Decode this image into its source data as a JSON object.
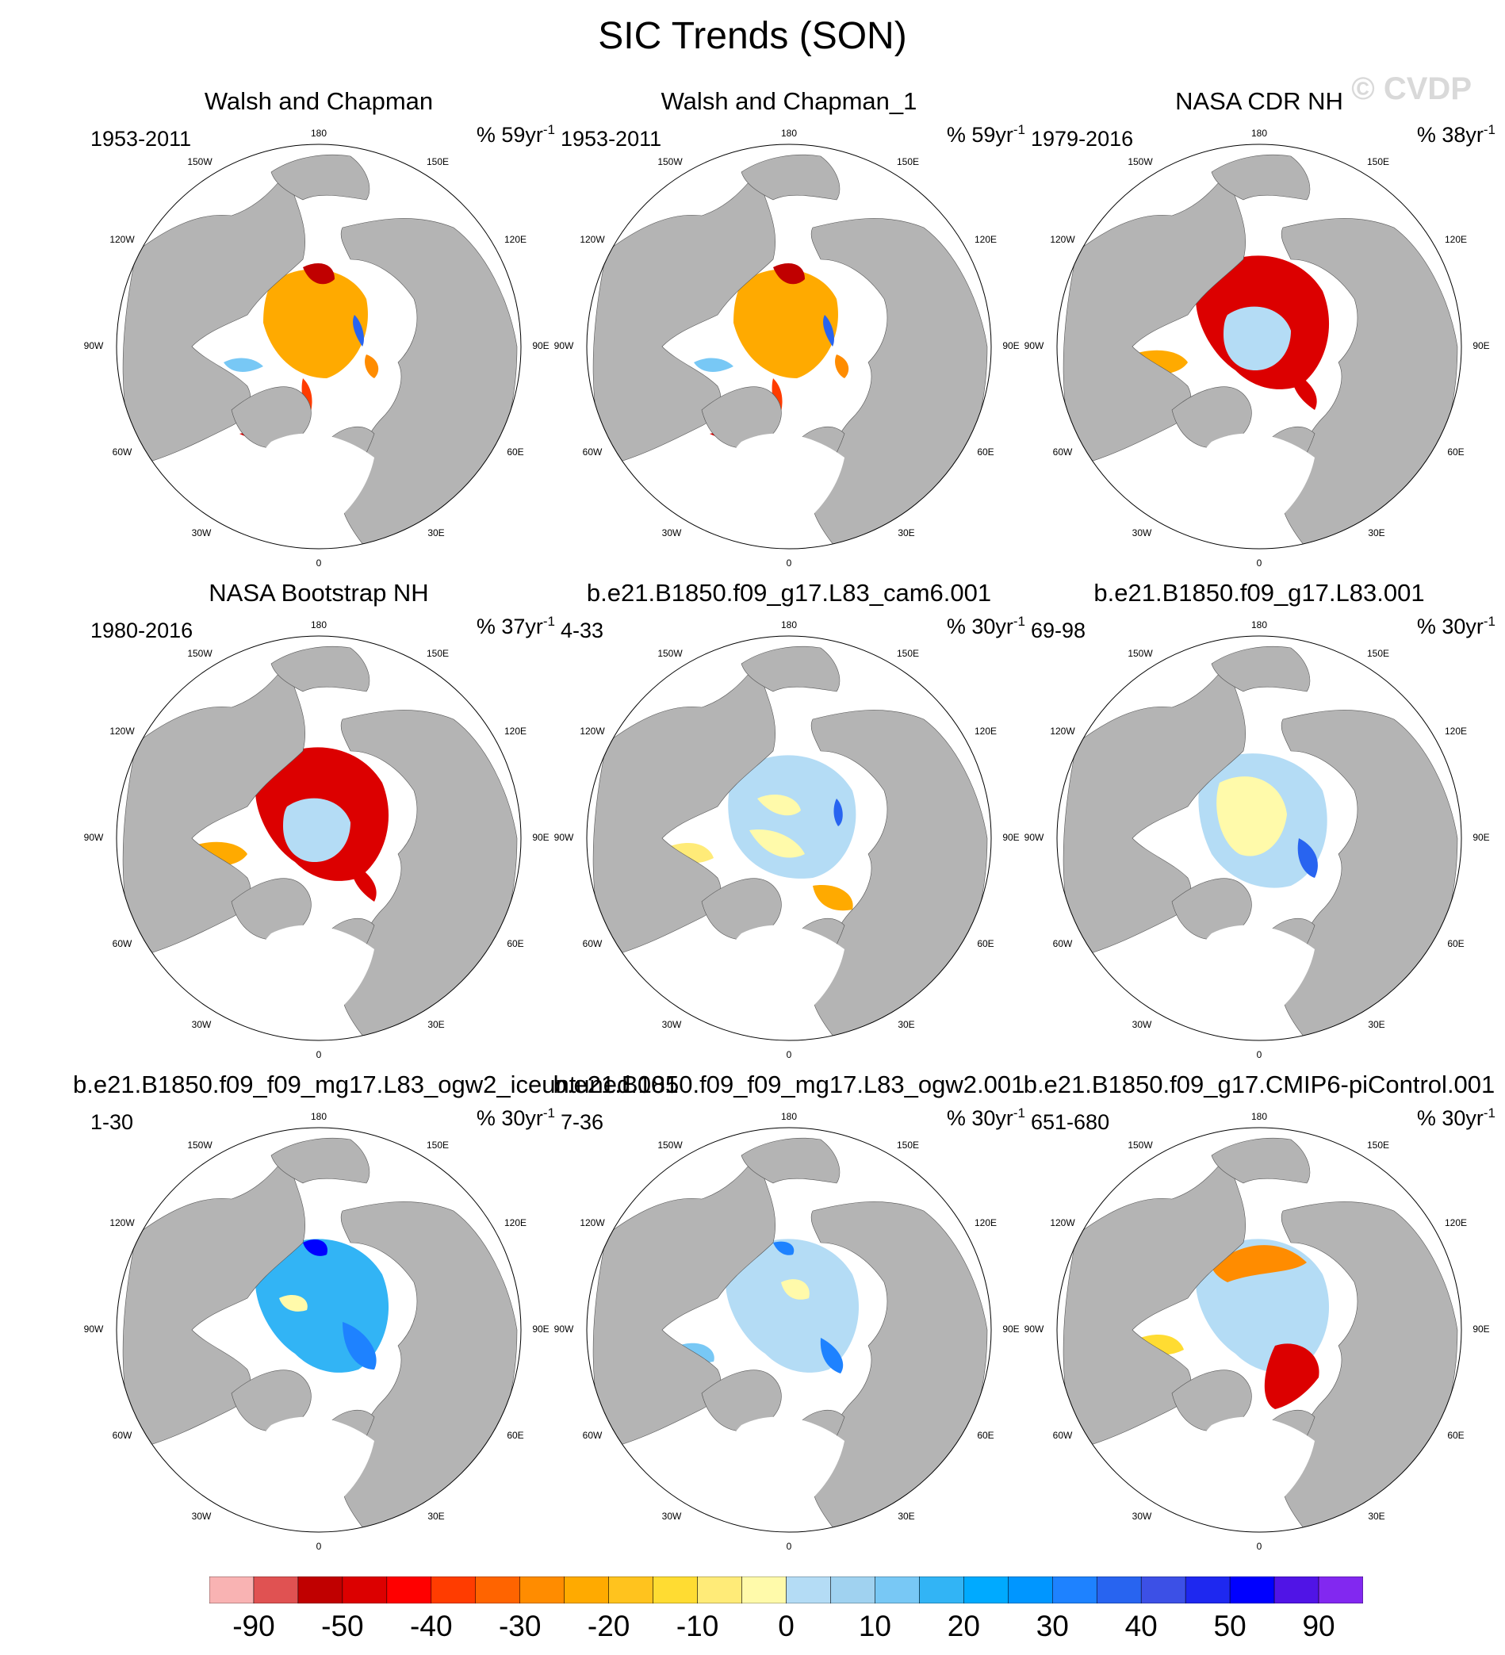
{
  "title": "SIC Trends (SON)",
  "watermark": "© CVDP",
  "lon_labels": {
    "l180": "180",
    "l150w": "150W",
    "l150e": "150E",
    "l120w": "120W",
    "l120e": "120E",
    "l90w": "90W",
    "l90e": "90E",
    "l60w": "60W",
    "l60e": "60E",
    "l30w": "30W",
    "l30e": "30E",
    "l0": "0"
  },
  "panels": [
    {
      "title": "Walsh and Chapman",
      "period": "1953-2011",
      "units": "% 59yr",
      "units_sup": "-1",
      "pattern": "walsh"
    },
    {
      "title": "Walsh and Chapman_1",
      "period": "1953-2011",
      "units": "% 59yr",
      "units_sup": "-1",
      "pattern": "walsh"
    },
    {
      "title": "NASA CDR NH",
      "period": "1979-2016",
      "units": "% 38yr",
      "units_sup": "-1",
      "pattern": "nasa"
    },
    {
      "title": "NASA Bootstrap NH",
      "period": "1980-2016",
      "units": "% 37yr",
      "units_sup": "-1",
      "pattern": "nasa"
    },
    {
      "title": "b.e21.B1850.f09_g17.L83_cam6.001",
      "period": "4-33",
      "units": "% 30yr",
      "units_sup": "-1",
      "pattern": "mixed"
    },
    {
      "title": "b.e21.B1850.f09_g17.L83.001",
      "period": "69-98",
      "units": "% 30yr",
      "units_sup": "-1",
      "pattern": "mixed2"
    },
    {
      "title": "b.e21.B1850.f09_f09_mg17.L83_ogw2_iceuntuned.001",
      "period": "1-30",
      "units": "% 30yr",
      "units_sup": "-1",
      "pattern": "blue"
    },
    {
      "title": "b.e21.B1850.f09_f09_mg17.L83_ogw2.001",
      "period": "7-36",
      "units": "% 30yr",
      "units_sup": "-1",
      "pattern": "blue2"
    },
    {
      "title": "b.e21.B1850.f09_g17.CMIP6-piControl.001",
      "period": "651-680",
      "units": "% 30yr",
      "units_sup": "-1",
      "pattern": "pi"
    }
  ],
  "colorbar": {
    "colors": [
      "#f9b3b3",
      "#e05252",
      "#c00000",
      "#dc0000",
      "#ff0000",
      "#ff3c00",
      "#ff6400",
      "#ff8c00",
      "#ffaa00",
      "#ffc31e",
      "#ffdc32",
      "#ffeb78",
      "#fffaaa",
      "#b4dcf5",
      "#a0d2f0",
      "#78c8f5",
      "#32b4f5",
      "#00aaff",
      "#0096ff",
      "#1e82ff",
      "#2864f0",
      "#3c50e6",
      "#1e28f0",
      "#0000ff",
      "#5014e6",
      "#8228f0"
    ],
    "labels": [
      "-90",
      "-50",
      "-40",
      "-30",
      "-20",
      "-10",
      "0",
      "10",
      "20",
      "30",
      "40",
      "50",
      "90"
    ]
  }
}
